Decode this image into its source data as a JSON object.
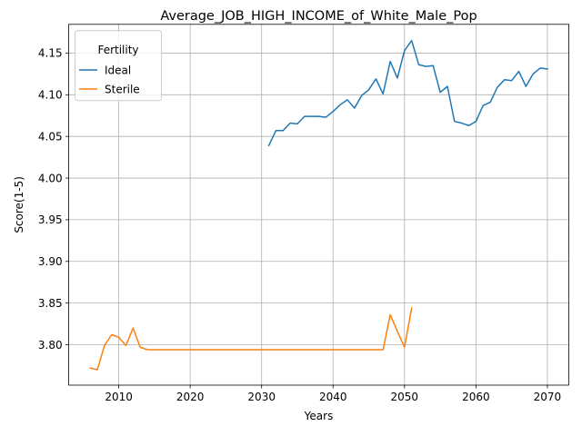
{
  "chart_data": {
    "type": "line",
    "title": "Average_JOB_HIGH_INCOME_of_White_Male_Pop",
    "xlabel": "Years",
    "ylabel": "Score(1-5)",
    "xlim": [
      2003,
      2073
    ],
    "ylim": [
      3.7515,
      4.1845
    ],
    "xticks": [
      2010,
      2020,
      2030,
      2040,
      2050,
      2060,
      2070
    ],
    "yticks": [
      3.8,
      3.85,
      3.9,
      3.95,
      4.0,
      4.05,
      4.1,
      4.15
    ],
    "grid": true,
    "legend": {
      "title": "Fertility",
      "placement": "top-left"
    },
    "series": [
      {
        "name": "Ideal",
        "color": "#1f77b4",
        "x": [
          2031,
          2032,
          2033,
          2034,
          2035,
          2036,
          2037,
          2038,
          2039,
          2040,
          2041,
          2042,
          2043,
          2044,
          2045,
          2046,
          2047,
          2048,
          2049,
          2050,
          2051,
          2052,
          2053,
          2054,
          2055,
          2056,
          2057,
          2058,
          2059,
          2060,
          2061,
          2062,
          2063,
          2064,
          2065,
          2066,
          2067,
          2068,
          2069,
          2070
        ],
        "y": [
          4.039,
          4.057,
          4.057,
          4.066,
          4.065,
          4.074,
          4.074,
          4.074,
          4.073,
          4.08,
          4.088,
          4.094,
          4.084,
          4.099,
          4.106,
          4.119,
          4.101,
          4.14,
          4.12,
          4.153,
          4.165,
          4.136,
          4.134,
          4.135,
          4.103,
          4.11,
          4.068,
          4.066,
          4.063,
          4.068,
          4.087,
          4.091,
          4.109,
          4.118,
          4.117,
          4.128,
          4.11,
          4.125,
          4.132,
          4.131
        ]
      },
      {
        "name": "Sterile",
        "color": "#ff7f0e",
        "x": [
          2006,
          2007,
          2008,
          2009,
          2010,
          2011,
          2012,
          2013,
          2014,
          2015,
          2016,
          2017,
          2018,
          2019,
          2020,
          2021,
          2022,
          2023,
          2024,
          2025,
          2026,
          2027,
          2028,
          2029,
          2030,
          2031,
          2032,
          2033,
          2034,
          2035,
          2036,
          2037,
          2038,
          2039,
          2040,
          2041,
          2042,
          2043,
          2044,
          2045,
          2046,
          2047,
          2048,
          2049,
          2050,
          2051
        ],
        "y": [
          3.772,
          3.77,
          3.799,
          3.812,
          3.809,
          3.799,
          3.82,
          3.797,
          3.794,
          3.794,
          3.794,
          3.794,
          3.794,
          3.794,
          3.794,
          3.794,
          3.794,
          3.794,
          3.794,
          3.794,
          3.794,
          3.794,
          3.794,
          3.794,
          3.794,
          3.794,
          3.794,
          3.794,
          3.794,
          3.794,
          3.794,
          3.794,
          3.794,
          3.794,
          3.794,
          3.794,
          3.794,
          3.794,
          3.794,
          3.794,
          3.794,
          3.794,
          3.836,
          3.816,
          3.797,
          3.844
        ]
      }
    ]
  }
}
